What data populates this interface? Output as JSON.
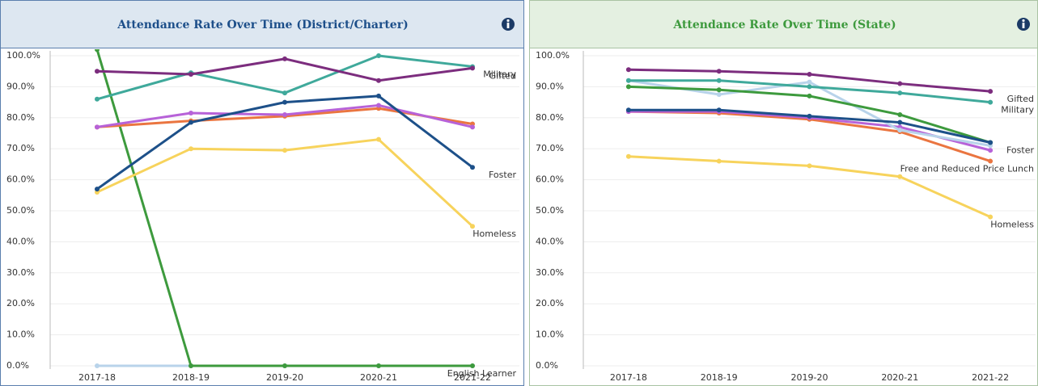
{
  "chart_data": [
    {
      "type": "line",
      "title": "Attendance Rate Over Time (District/Charter)",
      "categories": [
        "2017-18",
        "2018-19",
        "2019-20",
        "2020-21",
        "2021-22"
      ],
      "ylim": [
        0,
        100
      ],
      "yticks": [
        {
          "value": 0,
          "label": "0.0%"
        },
        {
          "value": 10,
          "label": "10.0%"
        },
        {
          "value": 20,
          "label": "20.0%"
        },
        {
          "value": 30,
          "label": "30.0%"
        },
        {
          "value": 40,
          "label": "40.0%"
        },
        {
          "value": 50,
          "label": "50.0%"
        },
        {
          "value": 60,
          "label": "60.0%"
        },
        {
          "value": 70,
          "label": "70.0%"
        },
        {
          "value": 80,
          "label": "80.0%"
        },
        {
          "value": 90,
          "label": "90.0%"
        },
        {
          "value": 100,
          "label": "100.0%"
        }
      ],
      "grid": true,
      "series": [
        {
          "color": "#b8d3ea",
          "values": [
            0,
            0,
            0,
            0,
            0
          ],
          "label": "English Learner"
        },
        {
          "color": "#3d9a3d",
          "values": [
            102,
            0,
            0,
            0,
            0
          ]
        },
        {
          "color": "#f7d35c",
          "values": [
            56,
            70,
            69.5,
            73,
            45
          ],
          "label": "Homeless"
        },
        {
          "color": "#ea7540",
          "values": [
            77,
            79,
            80.5,
            83,
            78
          ]
        },
        {
          "color": "#b762d8",
          "values": [
            77,
            81.5,
            81,
            84,
            77
          ]
        },
        {
          "color": "#1d5089",
          "values": [
            57,
            78.5,
            85,
            87,
            64
          ],
          "label": "Foster"
        },
        {
          "color": "#3fa99b",
          "values": [
            86,
            94.5,
            88,
            100,
            96.5
          ],
          "label": "Military"
        },
        {
          "color": "#7c2d7e",
          "values": [
            95,
            94,
            99,
            92,
            96
          ],
          "label": "Gifted"
        }
      ]
    },
    {
      "type": "line",
      "title": "Attendance Rate Over Time (State)",
      "categories": [
        "2017-18",
        "2018-19",
        "2019-20",
        "2020-21",
        "2021-22"
      ],
      "ylim": [
        0,
        100
      ],
      "yticks": [
        {
          "value": 0,
          "label": "0.0%"
        },
        {
          "value": 10,
          "label": "10.0%"
        },
        {
          "value": 20,
          "label": "20.0%"
        },
        {
          "value": 30,
          "label": "30.0%"
        },
        {
          "value": 40,
          "label": "40.0%"
        },
        {
          "value": 50,
          "label": "50.0%"
        },
        {
          "value": 60,
          "label": "60.0%"
        },
        {
          "value": 70,
          "label": "70.0%"
        },
        {
          "value": 80,
          "label": "80.0%"
        },
        {
          "value": 90,
          "label": "90.0%"
        },
        {
          "value": 100,
          "label": "100.0%"
        }
      ],
      "grid": true,
      "series": [
        {
          "color": "#f7d35c",
          "values": [
            67.5,
            66,
            64.5,
            61,
            48
          ],
          "label": "Homeless"
        },
        {
          "color": "#ea7540",
          "values": [
            82,
            81.5,
            79.5,
            75.5,
            66
          ],
          "label": "Free and Reduced Price Lunch"
        },
        {
          "color": "#b762d8",
          "values": [
            82,
            82,
            80,
            77,
            69.5
          ]
        },
        {
          "color": "#b8d3ea",
          "values": [
            92,
            87.5,
            91.5,
            76,
            71
          ]
        },
        {
          "color": "#3d9a3d",
          "values": [
            90,
            89,
            87,
            81,
            72
          ]
        },
        {
          "color": "#1d5089",
          "values": [
            82.5,
            82.5,
            80.5,
            78.5,
            72
          ],
          "label": "Foster"
        },
        {
          "color": "#3fa99b",
          "values": [
            92,
            92,
            90,
            88,
            85
          ],
          "label": "Military"
        },
        {
          "color": "#7c2d7e",
          "values": [
            95.5,
            95,
            94,
            91,
            88.5
          ],
          "label": "Gifted"
        }
      ]
    }
  ]
}
